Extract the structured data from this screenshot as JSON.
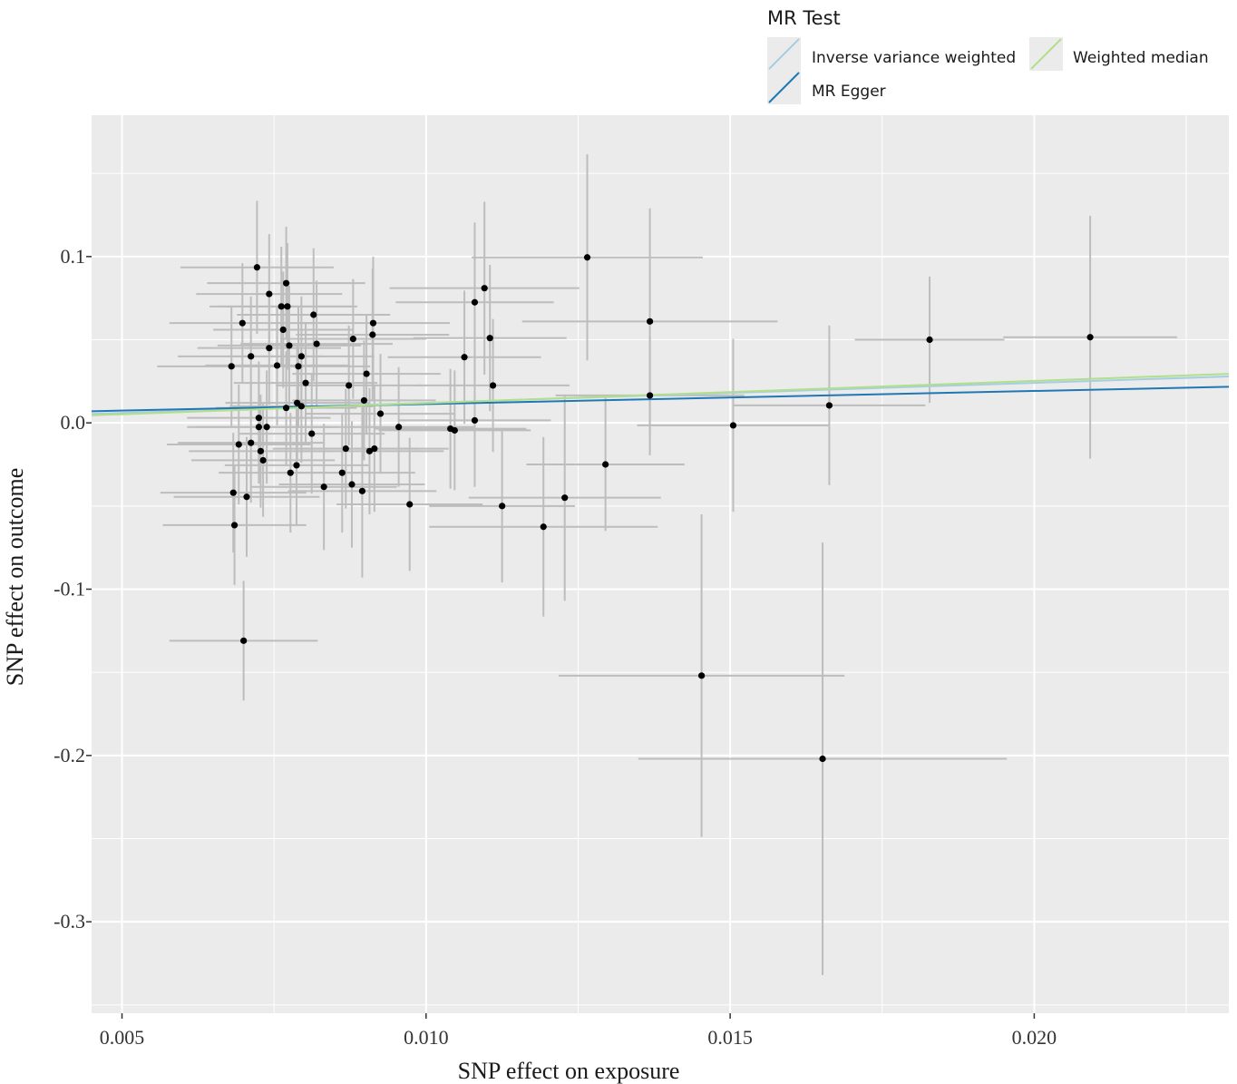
{
  "chart_data": {
    "type": "scatter",
    "xlabel": "SNP effect on exposure",
    "ylabel": "SNP effect on outcome",
    "xlim": [
      0.0045,
      0.0232
    ],
    "ylim": [
      -0.355,
      0.185
    ],
    "x_ticks": [
      0.005,
      0.01,
      0.015,
      0.02
    ],
    "x_tick_labels": [
      "0.005",
      "0.010",
      "0.015",
      "0.020"
    ],
    "y_ticks": [
      0.1,
      0.0,
      -0.1,
      -0.2,
      -0.3
    ],
    "y_tick_labels": [
      "0.1",
      "0.0",
      "-0.1",
      "-0.2",
      "-0.3"
    ],
    "grid": true,
    "legend": {
      "title": "MR Test",
      "placement": "top",
      "entries": [
        {
          "name": "Inverse variance weighted",
          "color": "#a6cee3"
        },
        {
          "name": "MR Egger",
          "color": "#1f78b4"
        },
        {
          "name": "Weighted median",
          "color": "#b2df8a"
        }
      ]
    },
    "lines": [
      {
        "name": "Inverse variance weighted",
        "color": "#a6cee3",
        "x": [
          0.0045,
          0.0232
        ],
        "y": [
          0.0054,
          0.0279
        ]
      },
      {
        "name": "MR Egger",
        "color": "#1f78b4",
        "x": [
          0.0045,
          0.0232
        ],
        "y": [
          0.007,
          0.0217
        ]
      },
      {
        "name": "Weighted median",
        "color": "#b2df8a",
        "x": [
          0.0045,
          0.0232
        ],
        "y": [
          0.0045,
          0.0295
        ]
      }
    ],
    "colors": {
      "point": "#000000",
      "errorbar": "#bdbdbd",
      "panel": "#ebebeb",
      "grid": "#ffffff"
    },
    "points": [
      {
        "x": 0.00722,
        "y": 0.0935,
        "xerr": 0.00126,
        "yerr": 0.04
      },
      {
        "x": 0.00742,
        "y": 0.0775,
        "xerr": 0.0012,
        "yerr": 0.036
      },
      {
        "x": 0.0077,
        "y": 0.084,
        "xerr": 0.0013,
        "yerr": 0.034
      },
      {
        "x": 0.00762,
        "y": 0.07,
        "xerr": 0.00118,
        "yerr": 0.036
      },
      {
        "x": 0.00772,
        "y": 0.07,
        "xerr": 0.00115,
        "yerr": 0.038
      },
      {
        "x": 0.00815,
        "y": 0.065,
        "xerr": 0.00126,
        "yerr": 0.04
      },
      {
        "x": 0.00698,
        "y": 0.06,
        "xerr": 0.0012,
        "yerr": 0.036
      },
      {
        "x": 0.00765,
        "y": 0.056,
        "xerr": 0.00115,
        "yerr": 0.035
      },
      {
        "x": 0.00913,
        "y": 0.06,
        "xerr": 0.00126,
        "yerr": 0.04
      },
      {
        "x": 0.00912,
        "y": 0.053,
        "xerr": 0.00126,
        "yerr": 0.04
      },
      {
        "x": 0.0088,
        "y": 0.0505,
        "xerr": 0.0012,
        "yerr": 0.036
      },
      {
        "x": 0.0082,
        "y": 0.0475,
        "xerr": 0.00125,
        "yerr": 0.038
      },
      {
        "x": 0.00775,
        "y": 0.0465,
        "xerr": 0.00118,
        "yerr": 0.036
      },
      {
        "x": 0.00742,
        "y": 0.045,
        "xerr": 0.00118,
        "yerr": 0.034
      },
      {
        "x": 0.00712,
        "y": 0.04,
        "xerr": 0.0012,
        "yerr": 0.036
      },
      {
        "x": 0.00795,
        "y": 0.04,
        "xerr": 0.0012,
        "yerr": 0.036
      },
      {
        "x": 0.0068,
        "y": 0.034,
        "xerr": 0.00122,
        "yerr": 0.036
      },
      {
        "x": 0.00755,
        "y": 0.0345,
        "xerr": 0.00118,
        "yerr": 0.036
      },
      {
        "x": 0.0079,
        "y": 0.034,
        "xerr": 0.00118,
        "yerr": 0.036
      },
      {
        "x": 0.00902,
        "y": 0.0295,
        "xerr": 0.00122,
        "yerr": 0.036
      },
      {
        "x": 0.00802,
        "y": 0.024,
        "xerr": 0.00118,
        "yerr": 0.036
      },
      {
        "x": 0.00873,
        "y": 0.0225,
        "xerr": 0.0012,
        "yerr": 0.036
      },
      {
        "x": 0.00898,
        "y": 0.0135,
        "xerr": 0.00118,
        "yerr": 0.036
      },
      {
        "x": 0.00788,
        "y": 0.012,
        "xerr": 0.00118,
        "yerr": 0.034
      },
      {
        "x": 0.00795,
        "y": 0.01,
        "xerr": 0.00118,
        "yerr": 0.034
      },
      {
        "x": 0.0077,
        "y": 0.009,
        "xerr": 0.00116,
        "yerr": 0.034
      },
      {
        "x": 0.00925,
        "y": 0.0055,
        "xerr": 0.00122,
        "yerr": 0.036
      },
      {
        "x": 0.00725,
        "y": 0.003,
        "xerr": 0.00118,
        "yerr": 0.034
      },
      {
        "x": 0.00725,
        "y": -0.0025,
        "xerr": 0.00118,
        "yerr": 0.034
      },
      {
        "x": 0.00738,
        "y": -0.0025,
        "xerr": 0.00118,
        "yerr": 0.034
      },
      {
        "x": 0.00955,
        "y": -0.0025,
        "xerr": 0.00124,
        "yerr": 0.036
      },
      {
        "x": 0.0104,
        "y": -0.0035,
        "xerr": 0.00125,
        "yerr": 0.036
      },
      {
        "x": 0.01047,
        "y": -0.0045,
        "xerr": 0.00125,
        "yerr": 0.036
      },
      {
        "x": 0.00812,
        "y": -0.0065,
        "xerr": 0.0012,
        "yerr": 0.036
      },
      {
        "x": 0.00712,
        "y": -0.012,
        "xerr": 0.0012,
        "yerr": 0.036
      },
      {
        "x": 0.00692,
        "y": -0.013,
        "xerr": 0.00118,
        "yerr": 0.036
      },
      {
        "x": 0.00868,
        "y": -0.0155,
        "xerr": 0.0012,
        "yerr": 0.036
      },
      {
        "x": 0.00915,
        "y": -0.0155,
        "xerr": 0.00122,
        "yerr": 0.038
      },
      {
        "x": 0.00907,
        "y": -0.017,
        "xerr": 0.00122,
        "yerr": 0.038
      },
      {
        "x": 0.00728,
        "y": -0.017,
        "xerr": 0.00118,
        "yerr": 0.034
      },
      {
        "x": 0.00732,
        "y": -0.0225,
        "xerr": 0.00118,
        "yerr": 0.034
      },
      {
        "x": 0.00787,
        "y": -0.0255,
        "xerr": 0.00118,
        "yerr": 0.036
      },
      {
        "x": 0.00777,
        "y": -0.03,
        "xerr": 0.00118,
        "yerr": 0.036
      },
      {
        "x": 0.00862,
        "y": -0.03,
        "xerr": 0.0012,
        "yerr": 0.036
      },
      {
        "x": 0.00832,
        "y": -0.0385,
        "xerr": 0.0012,
        "yerr": 0.038
      },
      {
        "x": 0.00878,
        "y": -0.037,
        "xerr": 0.0012,
        "yerr": 0.038
      },
      {
        "x": 0.00895,
        "y": -0.041,
        "xerr": 0.00122,
        "yerr": 0.052
      },
      {
        "x": 0.00683,
        "y": -0.042,
        "xerr": 0.0012,
        "yerr": 0.036
      },
      {
        "x": 0.00705,
        "y": -0.0445,
        "xerr": 0.0012,
        "yerr": 0.036
      },
      {
        "x": 0.00685,
        "y": -0.0615,
        "xerr": 0.00118,
        "yerr": 0.036
      },
      {
        "x": 0.007,
        "y": -0.131,
        "xerr": 0.00122,
        "yerr": 0.036
      },
      {
        "x": 0.0108,
        "y": 0.0725,
        "xerr": 0.0013,
        "yerr": 0.048
      },
      {
        "x": 0.01096,
        "y": 0.081,
        "xerr": 0.00156,
        "yerr": 0.052
      },
      {
        "x": 0.01105,
        "y": 0.051,
        "xerr": 0.00126,
        "yerr": 0.044
      },
      {
        "x": 0.01063,
        "y": 0.0395,
        "xerr": 0.00126,
        "yerr": 0.04
      },
      {
        "x": 0.0111,
        "y": 0.0225,
        "xerr": 0.00126,
        "yerr": 0.04
      },
      {
        "x": 0.0108,
        "y": 0.0015,
        "xerr": 0.00125,
        "yerr": 0.04
      },
      {
        "x": 0.00973,
        "y": -0.049,
        "xerr": 0.0012,
        "yerr": 0.04
      },
      {
        "x": 0.01125,
        "y": -0.05,
        "xerr": 0.0012,
        "yerr": 0.046
      },
      {
        "x": 0.01265,
        "y": 0.0995,
        "xerr": 0.0019,
        "yerr": 0.062
      },
      {
        "x": 0.01368,
        "y": 0.061,
        "xerr": 0.0021,
        "yerr": 0.068
      },
      {
        "x": 0.01368,
        "y": 0.0165,
        "xerr": 0.00155,
        "yerr": 0.036
      },
      {
        "x": 0.01295,
        "y": -0.025,
        "xerr": 0.0013,
        "yerr": 0.04
      },
      {
        "x": 0.01228,
        "y": -0.045,
        "xerr": 0.00158,
        "yerr": 0.062
      },
      {
        "x": 0.01193,
        "y": -0.0625,
        "xerr": 0.00188,
        "yerr": 0.054
      },
      {
        "x": 0.01505,
        "y": -0.0015,
        "xerr": 0.00158,
        "yerr": 0.052
      },
      {
        "x": 0.01663,
        "y": 0.0105,
        "xerr": 0.00158,
        "yerr": 0.048
      },
      {
        "x": 0.01453,
        "y": -0.152,
        "xerr": 0.00235,
        "yerr": 0.097
      },
      {
        "x": 0.01652,
        "y": -0.202,
        "xerr": 0.00303,
        "yerr": 0.13
      },
      {
        "x": 0.01828,
        "y": 0.05,
        "xerr": 0.00123,
        "yerr": 0.038
      },
      {
        "x": 0.02092,
        "y": 0.0515,
        "xerr": 0.00143,
        "yerr": 0.073
      }
    ]
  }
}
